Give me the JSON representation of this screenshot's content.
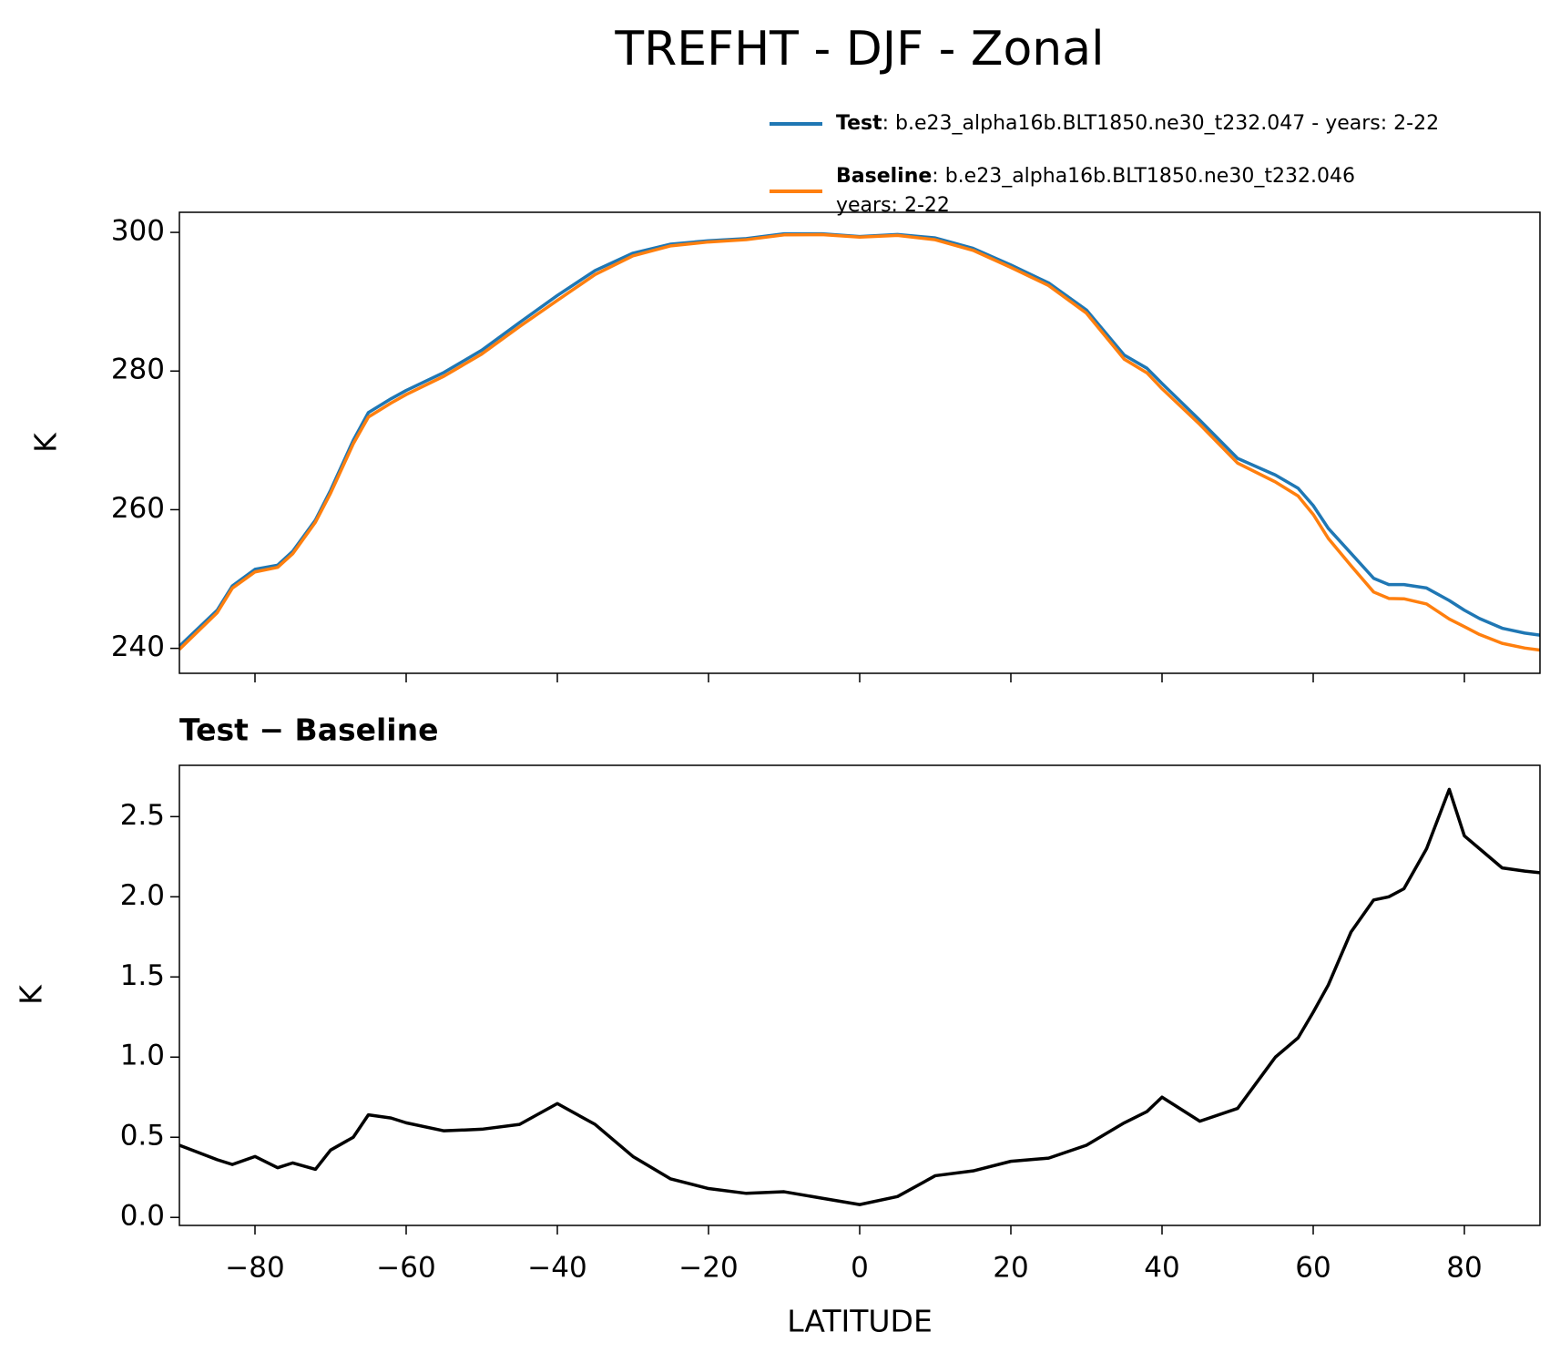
{
  "chart_data": [
    {
      "type": "line",
      "title": "TREFHT - DJF - Zonal",
      "ylabel": "K",
      "x": [
        -90,
        -85,
        -83,
        -80,
        -77,
        -75,
        -72,
        -70,
        -67,
        -65,
        -62,
        -60,
        -55,
        -50,
        -45,
        -40,
        -35,
        -30,
        -25,
        -20,
        -15,
        -10,
        -5,
        0,
        5,
        10,
        15,
        20,
        25,
        30,
        35,
        38,
        40,
        45,
        50,
        55,
        58,
        60,
        62,
        65,
        68,
        70,
        72,
        75,
        78,
        80,
        82,
        85,
        88,
        90
      ],
      "series": [
        {
          "name": "Test",
          "label_lines": [
            ": b.e23_alpha16b.BLT1850.ne30_t232.047 - years: 2-22"
          ],
          "color": "#1f77b4",
          "values": [
            240.3,
            245.5,
            249,
            251.4,
            252,
            254,
            258.5,
            262.8,
            270,
            274,
            276,
            277.2,
            279.8,
            283,
            287,
            290.9,
            294.5,
            297,
            298.3,
            298.8,
            299.1,
            299.8,
            299.8,
            299.4,
            299.7,
            299.2,
            297.7,
            295.3,
            292.7,
            288.8,
            282.3,
            280.4,
            278.2,
            272.9,
            267.4,
            265,
            263.1,
            260.6,
            257.3,
            253.7,
            250.1,
            249.2,
            249.2,
            248.7,
            246.9,
            245.5,
            244.3,
            242.9,
            242.2,
            241.9
          ]
        },
        {
          "name": "Baseline",
          "label_lines": [
            ": b.e23_alpha16b.BLT1850.ne30_t232.046",
            "years: 2-22"
          ],
          "color": "#ff7f0e",
          "values": [
            239.85,
            245.14,
            248.67,
            251.02,
            251.69,
            253.66,
            258.2,
            262.38,
            269.5,
            273.36,
            275.38,
            276.61,
            279.26,
            282.45,
            286.42,
            290.19,
            293.92,
            296.62,
            298.06,
            298.62,
            298.95,
            299.64,
            299.68,
            299.32,
            299.57,
            298.94,
            297.41,
            294.95,
            292.33,
            288.35,
            281.71,
            279.74,
            277.45,
            272.3,
            266.72,
            264,
            261.98,
            259.32,
            255.85,
            251.92,
            248.12,
            247.2,
            247.15,
            246.4,
            244.23,
            243.12,
            242.0,
            240.72,
            240.04,
            239.75
          ]
        }
      ],
      "xlim": [
        -90,
        90
      ],
      "ylim": [
        236.4,
        302.9
      ],
      "yticks": [
        240,
        260,
        280,
        300
      ],
      "legend": "upper right"
    },
    {
      "type": "line",
      "title": "Test − Baseline",
      "ylabel": "K",
      "xlabel": "LATITUDE",
      "x": [
        -90,
        -85,
        -83,
        -80,
        -77,
        -75,
        -72,
        -70,
        -67,
        -65,
        -62,
        -60,
        -55,
        -50,
        -45,
        -40,
        -35,
        -30,
        -25,
        -20,
        -15,
        -10,
        -5,
        0,
        5,
        10,
        15,
        20,
        25,
        30,
        35,
        38,
        40,
        45,
        50,
        55,
        58,
        60,
        62,
        65,
        68,
        70,
        72,
        75,
        78,
        80,
        82,
        85,
        88,
        90
      ],
      "series": [
        {
          "color": "#000000",
          "values": [
            0.45,
            0.36,
            0.33,
            0.38,
            0.31,
            0.34,
            0.3,
            0.42,
            0.5,
            0.64,
            0.62,
            0.59,
            0.54,
            0.55,
            0.58,
            0.71,
            0.58,
            0.38,
            0.24,
            0.18,
            0.15,
            0.16,
            0.12,
            0.08,
            0.13,
            0.26,
            0.29,
            0.35,
            0.37,
            0.45,
            0.59,
            0.66,
            0.75,
            0.6,
            0.68,
            1.0,
            1.12,
            1.28,
            1.45,
            1.78,
            1.98,
            2.0,
            2.05,
            2.3,
            2.67,
            2.38,
            2.3,
            2.18,
            2.16,
            2.15
          ]
        }
      ],
      "xlim": [
        -90,
        90
      ],
      "ylim": [
        -0.05,
        2.82
      ],
      "xticks": [
        {
          "value": -80,
          "label": "−80"
        },
        {
          "value": -60,
          "label": "−60"
        },
        {
          "value": -40,
          "label": "−40"
        },
        {
          "value": -20,
          "label": "−20"
        },
        0,
        20,
        40,
        60,
        80
      ],
      "yticks": [
        {
          "value": 0,
          "label": "0.0"
        },
        0.5,
        {
          "value": 1,
          "label": "1.0"
        },
        1.5,
        {
          "value": 2,
          "label": "2.0"
        },
        2.5
      ]
    }
  ]
}
